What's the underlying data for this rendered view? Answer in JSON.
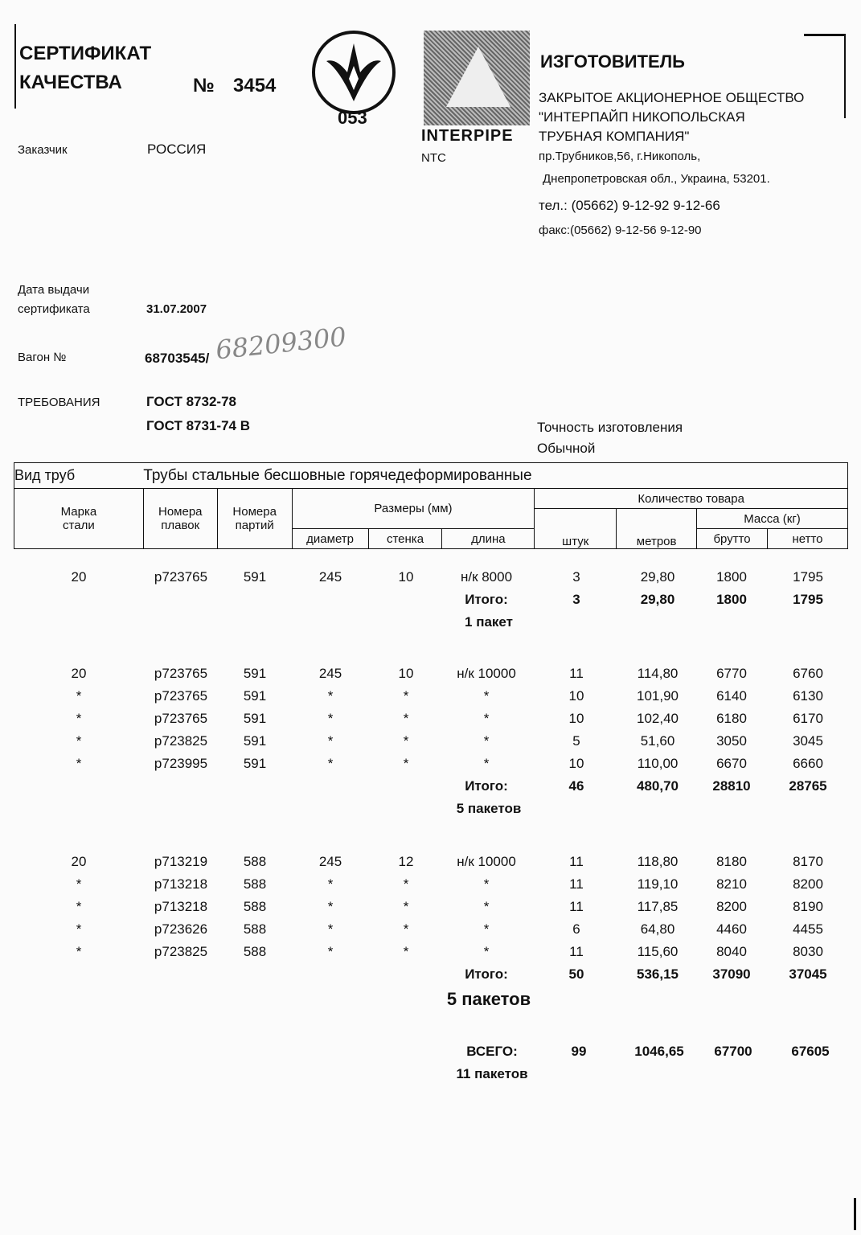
{
  "header": {
    "title_line1": "СЕРТИФИКАТ",
    "title_line2": "КАЧЕСТВА",
    "number_label": "№",
    "number": "3454",
    "mark_code": "053",
    "logo_text": "INTERPIPE",
    "logo_sub": "NTC"
  },
  "manufacturer": {
    "heading": "ИЗГОТОВИТЕЛЬ",
    "lines": [
      "ЗАКРЫТОЕ АКЦИОНЕРНОЕ ОБЩЕСТВО",
      "\"ИНТЕРПАЙП НИКОПОЛЬСКАЯ",
      "ТРУБНАЯ КОМПАНИЯ\"",
      "пр.Трубников,56, г.Никополь,",
      "Днепропетровская обл., Украина, 53201.",
      "тел.: (05662) 9-12-92  9-12-66",
      "факс:(05662) 9-12-56  9-12-90"
    ]
  },
  "fields": {
    "customer_label": "Заказчик",
    "customer": "РОССИЯ",
    "date_label_1": "Дата выдачи",
    "date_label_2": "сертификата",
    "date": "31.07.2007",
    "wagon_label": "Вагон №",
    "wagon": "68703545/",
    "wagon_handwritten": "68209300",
    "req_label": "ТРЕБОВАНИЯ",
    "req1": "ГОСТ 8732-78",
    "req2": "ГОСТ 8731-74  В",
    "accuracy_label": "Точность изготовления",
    "accuracy": "Обычной"
  },
  "table_header": {
    "type_label": "Вид труб",
    "type_value": "Трубы стальные бесшовные горячедеформированные",
    "steel_1": "Марка",
    "steel_2": "стали",
    "heat_1": "Номера",
    "heat_2": "плавок",
    "lot_1": "Номера",
    "lot_2": "партий",
    "sizes": "Размеры (мм)",
    "diameter": "диаметр",
    "wall": "стенка",
    "length": "длина",
    "quantity": "Количество товара",
    "pcs": "штук",
    "meters": "метров",
    "mass": "Масса (кг)",
    "gross": "брутто",
    "net": "нетто"
  },
  "groups": [
    {
      "rows": [
        [
          "20",
          "р723765",
          "591",
          "245",
          "10",
          "н/к 8000",
          "3",
          "29,80",
          "1800",
          "1795"
        ]
      ],
      "total_label": "Итого:",
      "total": [
        "3",
        "29,80",
        "1800",
        "1795"
      ],
      "packs": "1 пакет"
    },
    {
      "rows": [
        [
          "20",
          "р723765",
          "591",
          "245",
          "10",
          "н/к 10000",
          "11",
          "114,80",
          "6770",
          "6760"
        ],
        [
          "*",
          "р723765",
          "591",
          "*",
          "*",
          "*",
          "10",
          "101,90",
          "6140",
          "6130"
        ],
        [
          "*",
          "р723765",
          "591",
          "*",
          "*",
          "*",
          "10",
          "102,40",
          "6180",
          "6170"
        ],
        [
          "*",
          "р723825",
          "591",
          "*",
          "*",
          "*",
          "5",
          "51,60",
          "3050",
          "3045"
        ],
        [
          "*",
          "р723995",
          "591",
          "*",
          "*",
          "*",
          "10",
          "110,00",
          "6670",
          "6660"
        ]
      ],
      "total_label": "Итого:",
      "total": [
        "46",
        "480,70",
        "28810",
        "28765"
      ],
      "packs": "5 пакетов"
    },
    {
      "rows": [
        [
          "20",
          "р713219",
          "588",
          "245",
          "12",
          "н/к 10000",
          "11",
          "118,80",
          "8180",
          "8170"
        ],
        [
          "*",
          "р713218",
          "588",
          "*",
          "*",
          "*",
          "11",
          "119,10",
          "8210",
          "8200"
        ],
        [
          "*",
          "р713218",
          "588",
          "*",
          "*",
          "*",
          "11",
          "117,85",
          "8200",
          "8190"
        ],
        [
          "*",
          "р723626",
          "588",
          "*",
          "*",
          "*",
          "6",
          "64,80",
          "4460",
          "4455"
        ],
        [
          "*",
          "р723825",
          "588",
          "*",
          "*",
          "*",
          "11",
          "115,60",
          "8040",
          "8030"
        ]
      ],
      "total_label": "Итого:",
      "total": [
        "50",
        "536,15",
        "37090",
        "37045"
      ],
      "packs": "5 пакетов"
    }
  ],
  "grand_total": {
    "label": "ВСЕГО:",
    "values": [
      "99",
      "1046,65",
      "67700",
      "67605"
    ],
    "packs": "11 пакетов"
  }
}
